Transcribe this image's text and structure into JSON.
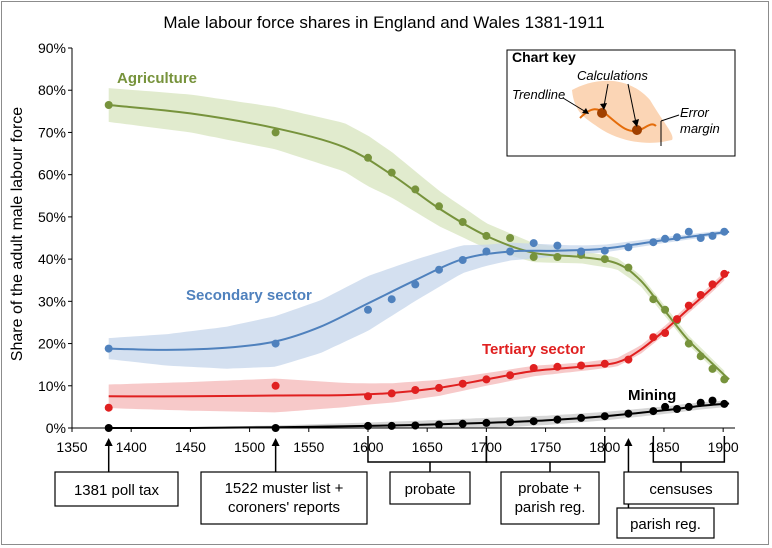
{
  "chart_data": {
    "type": "line",
    "title": "Male labour force shares in England and Wales 1381-1911",
    "xlabel": "",
    "ylabel": "Share of the adult male labour force",
    "xlim": [
      1350,
      1910
    ],
    "ylim": [
      0,
      0.9
    ],
    "x_ticks": [
      "1350",
      "1400",
      "1450",
      "1500",
      "1550",
      "1600",
      "1650",
      "1700",
      "1750",
      "1800",
      "1850",
      "1900"
    ],
    "y_ticks": [
      "0%",
      "10%",
      "20%",
      "30%",
      "40%",
      "50%",
      "60%",
      "70%",
      "80%",
      "90%"
    ],
    "grid": false,
    "series": [
      {
        "name": "Agriculture",
        "color": "#77933c",
        "band_color": "#d7e4bd",
        "points": [
          [
            1381,
            0.765
          ],
          [
            1522,
            0.7
          ],
          [
            1600,
            0.64
          ],
          [
            1620,
            0.605
          ],
          [
            1640,
            0.565
          ],
          [
            1660,
            0.525
          ],
          [
            1680,
            0.488
          ],
          [
            1700,
            0.455
          ],
          [
            1720,
            0.45
          ],
          [
            1740,
            0.405
          ],
          [
            1760,
            0.405
          ],
          [
            1780,
            0.41
          ],
          [
            1800,
            0.4
          ],
          [
            1820,
            0.38
          ],
          [
            1841,
            0.305
          ],
          [
            1851,
            0.28
          ],
          [
            1861,
            0.255
          ],
          [
            1871,
            0.2
          ],
          [
            1881,
            0.17
          ],
          [
            1891,
            0.14
          ],
          [
            1901,
            0.115
          ]
        ],
        "trend": [
          [
            1381,
            0.765
          ],
          [
            1450,
            0.745
          ],
          [
            1522,
            0.71
          ],
          [
            1580,
            0.665
          ],
          [
            1620,
            0.6
          ],
          [
            1660,
            0.52
          ],
          [
            1700,
            0.455
          ],
          [
            1740,
            0.415
          ],
          [
            1780,
            0.405
          ],
          [
            1810,
            0.39
          ],
          [
            1830,
            0.35
          ],
          [
            1850,
            0.28
          ],
          [
            1870,
            0.21
          ],
          [
            1890,
            0.155
          ],
          [
            1905,
            0.115
          ]
        ],
        "band_width": [
          [
            1381,
            0.04
          ],
          [
            1522,
            0.05
          ],
          [
            1600,
            0.06
          ],
          [
            1700,
            0.03
          ],
          [
            1780,
            0.015
          ],
          [
            1900,
            0.01
          ]
        ]
      },
      {
        "name": "Secondary sector",
        "color": "#4f81bd",
        "band_color": "#c5d5eb",
        "points": [
          [
            1381,
            0.188
          ],
          [
            1522,
            0.2
          ],
          [
            1600,
            0.28
          ],
          [
            1620,
            0.305
          ],
          [
            1640,
            0.34
          ],
          [
            1660,
            0.375
          ],
          [
            1680,
            0.398
          ],
          [
            1700,
            0.418
          ],
          [
            1720,
            0.418
          ],
          [
            1740,
            0.438
          ],
          [
            1760,
            0.432
          ],
          [
            1780,
            0.418
          ],
          [
            1800,
            0.42
          ],
          [
            1820,
            0.428
          ],
          [
            1841,
            0.44
          ],
          [
            1851,
            0.448
          ],
          [
            1861,
            0.452
          ],
          [
            1871,
            0.465
          ],
          [
            1881,
            0.45
          ],
          [
            1891,
            0.455
          ],
          [
            1901,
            0.465
          ]
        ],
        "trend": [
          [
            1381,
            0.188
          ],
          [
            1430,
            0.185
          ],
          [
            1480,
            0.19
          ],
          [
            1522,
            0.205
          ],
          [
            1560,
            0.24
          ],
          [
            1600,
            0.295
          ],
          [
            1640,
            0.35
          ],
          [
            1680,
            0.4
          ],
          [
            1720,
            0.418
          ],
          [
            1760,
            0.42
          ],
          [
            1800,
            0.425
          ],
          [
            1850,
            0.445
          ],
          [
            1905,
            0.465
          ]
        ],
        "band_width": [
          [
            1381,
            0.025
          ],
          [
            1522,
            0.06
          ],
          [
            1600,
            0.065
          ],
          [
            1700,
            0.025
          ],
          [
            1780,
            0.01
          ],
          [
            1900,
            0.005
          ]
        ]
      },
      {
        "name": "Tertiary sector",
        "color": "#e02020",
        "band_color": "#f4b7b7",
        "points": [
          [
            1381,
            0.048
          ],
          [
            1522,
            0.1
          ],
          [
            1600,
            0.075
          ],
          [
            1620,
            0.082
          ],
          [
            1640,
            0.09
          ],
          [
            1660,
            0.095
          ],
          [
            1680,
            0.105
          ],
          [
            1700,
            0.115
          ],
          [
            1720,
            0.125
          ],
          [
            1740,
            0.142
          ],
          [
            1760,
            0.145
          ],
          [
            1780,
            0.148
          ],
          [
            1800,
            0.152
          ],
          [
            1820,
            0.162
          ],
          [
            1841,
            0.215
          ],
          [
            1851,
            0.225
          ],
          [
            1861,
            0.258
          ],
          [
            1871,
            0.29
          ],
          [
            1881,
            0.315
          ],
          [
            1891,
            0.34
          ],
          [
            1901,
            0.365
          ]
        ],
        "trend": [
          [
            1381,
            0.075
          ],
          [
            1450,
            0.075
          ],
          [
            1522,
            0.077
          ],
          [
            1580,
            0.078
          ],
          [
            1620,
            0.083
          ],
          [
            1660,
            0.095
          ],
          [
            1700,
            0.115
          ],
          [
            1740,
            0.135
          ],
          [
            1780,
            0.145
          ],
          [
            1810,
            0.155
          ],
          [
            1830,
            0.185
          ],
          [
            1850,
            0.23
          ],
          [
            1870,
            0.28
          ],
          [
            1890,
            0.33
          ],
          [
            1905,
            0.37
          ]
        ],
        "band_width": [
          [
            1381,
            0.028
          ],
          [
            1522,
            0.04
          ],
          [
            1600,
            0.025
          ],
          [
            1700,
            0.015
          ],
          [
            1780,
            0.01
          ],
          [
            1900,
            0.01
          ]
        ]
      },
      {
        "name": "Mining",
        "color": "#000000",
        "band_color": "#c8c8c8",
        "points": [
          [
            1381,
            0.0
          ],
          [
            1522,
            0.0
          ],
          [
            1600,
            0.005
          ],
          [
            1620,
            0.005
          ],
          [
            1640,
            0.006
          ],
          [
            1660,
            0.008
          ],
          [
            1680,
            0.01
          ],
          [
            1700,
            0.012
          ],
          [
            1720,
            0.014
          ],
          [
            1740,
            0.016
          ],
          [
            1760,
            0.02
          ],
          [
            1780,
            0.024
          ],
          [
            1800,
            0.028
          ],
          [
            1820,
            0.034
          ],
          [
            1841,
            0.04
          ],
          [
            1851,
            0.05
          ],
          [
            1861,
            0.045
          ],
          [
            1871,
            0.05
          ],
          [
            1881,
            0.06
          ],
          [
            1891,
            0.065
          ],
          [
            1901,
            0.057
          ]
        ],
        "trend": [
          [
            1381,
            0.0
          ],
          [
            1450,
            0.0
          ],
          [
            1522,
            0.002
          ],
          [
            1600,
            0.005
          ],
          [
            1650,
            0.008
          ],
          [
            1700,
            0.012
          ],
          [
            1750,
            0.018
          ],
          [
            1800,
            0.028
          ],
          [
            1850,
            0.042
          ],
          [
            1880,
            0.052
          ],
          [
            1905,
            0.058
          ]
        ],
        "band_width": [
          [
            1381,
            0.0
          ],
          [
            1522,
            0.004
          ],
          [
            1600,
            0.008
          ],
          [
            1700,
            0.012
          ],
          [
            1800,
            0.01
          ],
          [
            1900,
            0.008
          ]
        ]
      }
    ],
    "labels": {
      "agriculture": "Agriculture",
      "secondary": "Secondary sector",
      "tertiary": "Tertiary sector",
      "mining": "Mining"
    },
    "sources": [
      {
        "label": "1381 poll tax",
        "year": 1381
      },
      {
        "label_lines": [
          "1522 muster list +",
          "coroners' reports"
        ],
        "year": 1522
      },
      {
        "label": "probate",
        "range": [
          1600,
          1700
        ]
      },
      {
        "label_lines": [
          "probate +",
          "parish reg."
        ],
        "range": [
          1700,
          1800
        ]
      },
      {
        "label": "parish reg.",
        "year": 1820
      },
      {
        "label": "censuses",
        "range": [
          1841,
          1901
        ]
      }
    ],
    "chart_key": {
      "title": "Chart key",
      "calculations": "Calculations",
      "trendline": "Trendline",
      "error_line1": "Error",
      "error_line2": "margin"
    }
  }
}
